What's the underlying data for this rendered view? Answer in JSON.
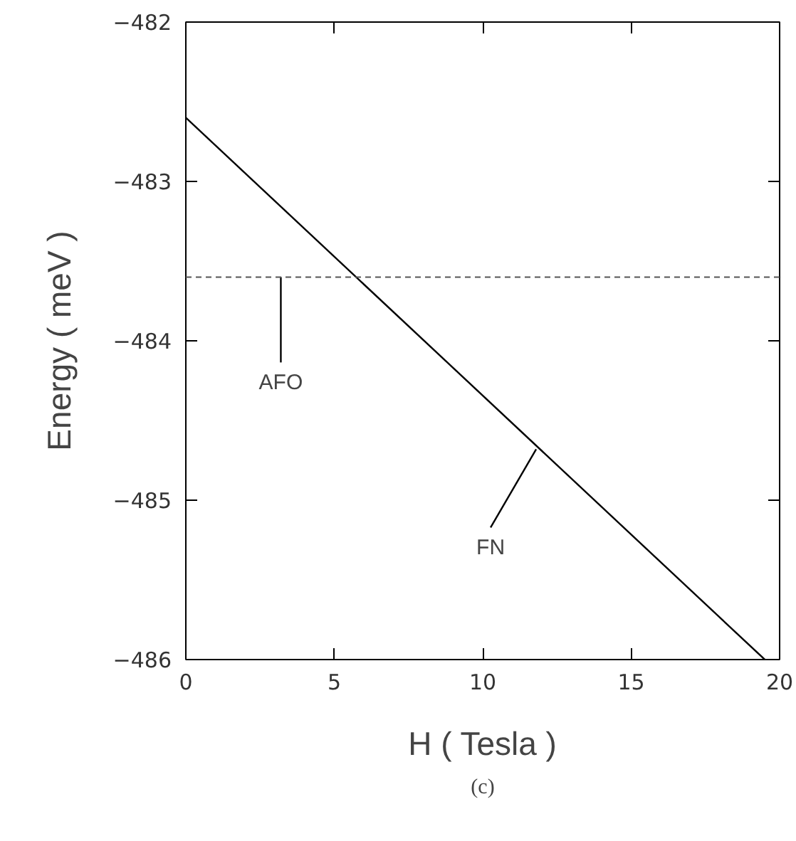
{
  "chart_data": {
    "type": "line",
    "xlabel": "H ( Tesla )",
    "ylabel": "Energy ( meV )",
    "xlim": [
      0,
      20
    ],
    "ylim": [
      -486,
      -482
    ],
    "xticks": [
      0,
      5,
      10,
      15,
      20
    ],
    "yticks": [
      -486,
      -485,
      -484,
      -483,
      -482
    ],
    "grid": false,
    "line_style": "solid",
    "series": [
      {
        "color": "#000000",
        "x": [
          0,
          19.5
        ],
        "values": [
          -482.6,
          -486.0
        ]
      }
    ],
    "ref_lines": [
      {
        "axis": "y",
        "value": -483.6,
        "color": "#555555",
        "line_style": "dashed"
      }
    ],
    "annotations": [
      {
        "text": "AFO",
        "x": 3.2,
        "y": -483.6
      },
      {
        "text": "FN",
        "x": 11.8,
        "y": -484.68
      },
      "(c)"
    ]
  }
}
